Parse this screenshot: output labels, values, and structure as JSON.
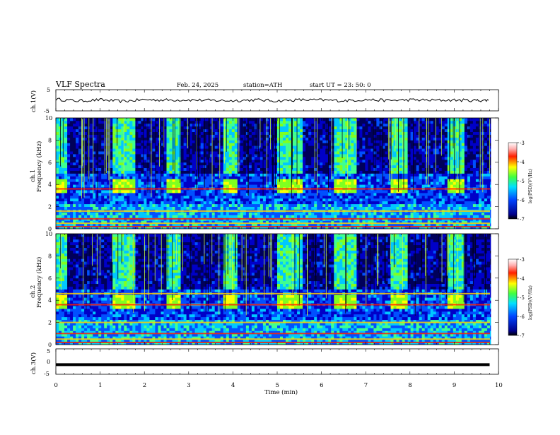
{
  "header": {
    "title": "VLF  Spectra",
    "date": "Feb. 24, 2025",
    "station": "station=ATH",
    "start_ut": "start  UT  =   23: 50: 0"
  },
  "chart_data": [
    {
      "type": "line",
      "panel": "ch1-waveform",
      "ylabel": "ch.1(V)",
      "ytick_labels": [
        "5",
        "-5"
      ],
      "ylim": [
        -5,
        5
      ],
      "x": [
        0,
        0.5,
        1,
        1.5,
        2,
        2.5,
        3,
        3.5,
        4,
        4.5,
        5,
        5.5,
        6,
        6.5,
        7,
        7.5,
        8,
        8.5,
        9,
        9.5,
        9.8
      ],
      "y": [
        0.5,
        -0.3,
        0.2,
        -0.5,
        0.3,
        0.1,
        0.2,
        -0.1,
        -0.2,
        0.2,
        -0.3,
        0.2,
        0.1,
        -0.2,
        0.3,
        -0.1,
        0.2,
        0.0,
        0.1,
        -0.1,
        0.0
      ]
    },
    {
      "type": "heatmap",
      "panel": "ch1-spectrogram",
      "ylabel": "Frequency  (kHz)",
      "channel_label": "ch.1",
      "ylim": [
        0,
        10
      ],
      "ytick_labels": [
        "0",
        "2",
        "4",
        "6",
        "8",
        "10"
      ],
      "colorbar": {
        "label": "log(PSD)(V²/Hz)",
        "ticks": [
          "-3",
          "-4",
          "-5",
          "-6",
          "-7"
        ],
        "range": [
          -7,
          -3
        ]
      },
      "burst_intervals_min": [
        [
          0,
          0.25
        ],
        [
          1.2,
          1.75
        ],
        [
          2.4,
          2.75
        ],
        [
          3.65,
          4.0
        ],
        [
          4.9,
          5.45
        ],
        [
          6.1,
          6.6
        ],
        [
          7.4,
          7.75
        ],
        [
          8.65,
          9.0
        ]
      ],
      "lines_khz": [
        0.2,
        0.5,
        0.9,
        1.6,
        3.6
      ]
    },
    {
      "type": "heatmap",
      "panel": "ch2-spectrogram",
      "ylabel": "Frequency  (kHz)",
      "channel_label": "ch.2",
      "ylim": [
        0,
        10
      ],
      "ytick_labels": [
        "0",
        "2",
        "4",
        "6",
        "8",
        "10"
      ],
      "colorbar": {
        "label": "log(PSD)(V²/Hz)",
        "ticks": [
          "-3",
          "-4",
          "-5",
          "-6",
          "-7"
        ],
        "range": [
          -7,
          -3
        ]
      },
      "burst_intervals_min": [
        [
          0,
          0.25
        ],
        [
          1.2,
          1.75
        ],
        [
          2.4,
          2.75
        ],
        [
          3.65,
          4.0
        ],
        [
          4.9,
          5.45
        ],
        [
          6.1,
          6.6
        ],
        [
          7.4,
          7.75
        ],
        [
          8.65,
          9.0
        ]
      ],
      "lines_khz": [
        0.2,
        0.5,
        1.0,
        2.0,
        3.6,
        4.6
      ]
    },
    {
      "type": "line",
      "panel": "ch3-waveform",
      "ylabel": "ch.3(V)",
      "ytick_labels": [
        "5",
        "0",
        "-5"
      ],
      "ylim": [
        -5,
        5
      ],
      "x": [
        0,
        9.8
      ],
      "y": [
        -1.2,
        -1.2
      ]
    }
  ],
  "x_axis": {
    "label": "Time  (min)",
    "range": [
      0,
      10
    ],
    "tick_labels": [
      "0",
      "1",
      "2",
      "3",
      "4",
      "5",
      "6",
      "7",
      "8",
      "9",
      "10"
    ]
  },
  "colors": {
    "jet": [
      "#000080",
      "#0000ff",
      "#00ffff",
      "#00ff00",
      "#ffff00",
      "#ff0000",
      "#ffffff"
    ]
  }
}
